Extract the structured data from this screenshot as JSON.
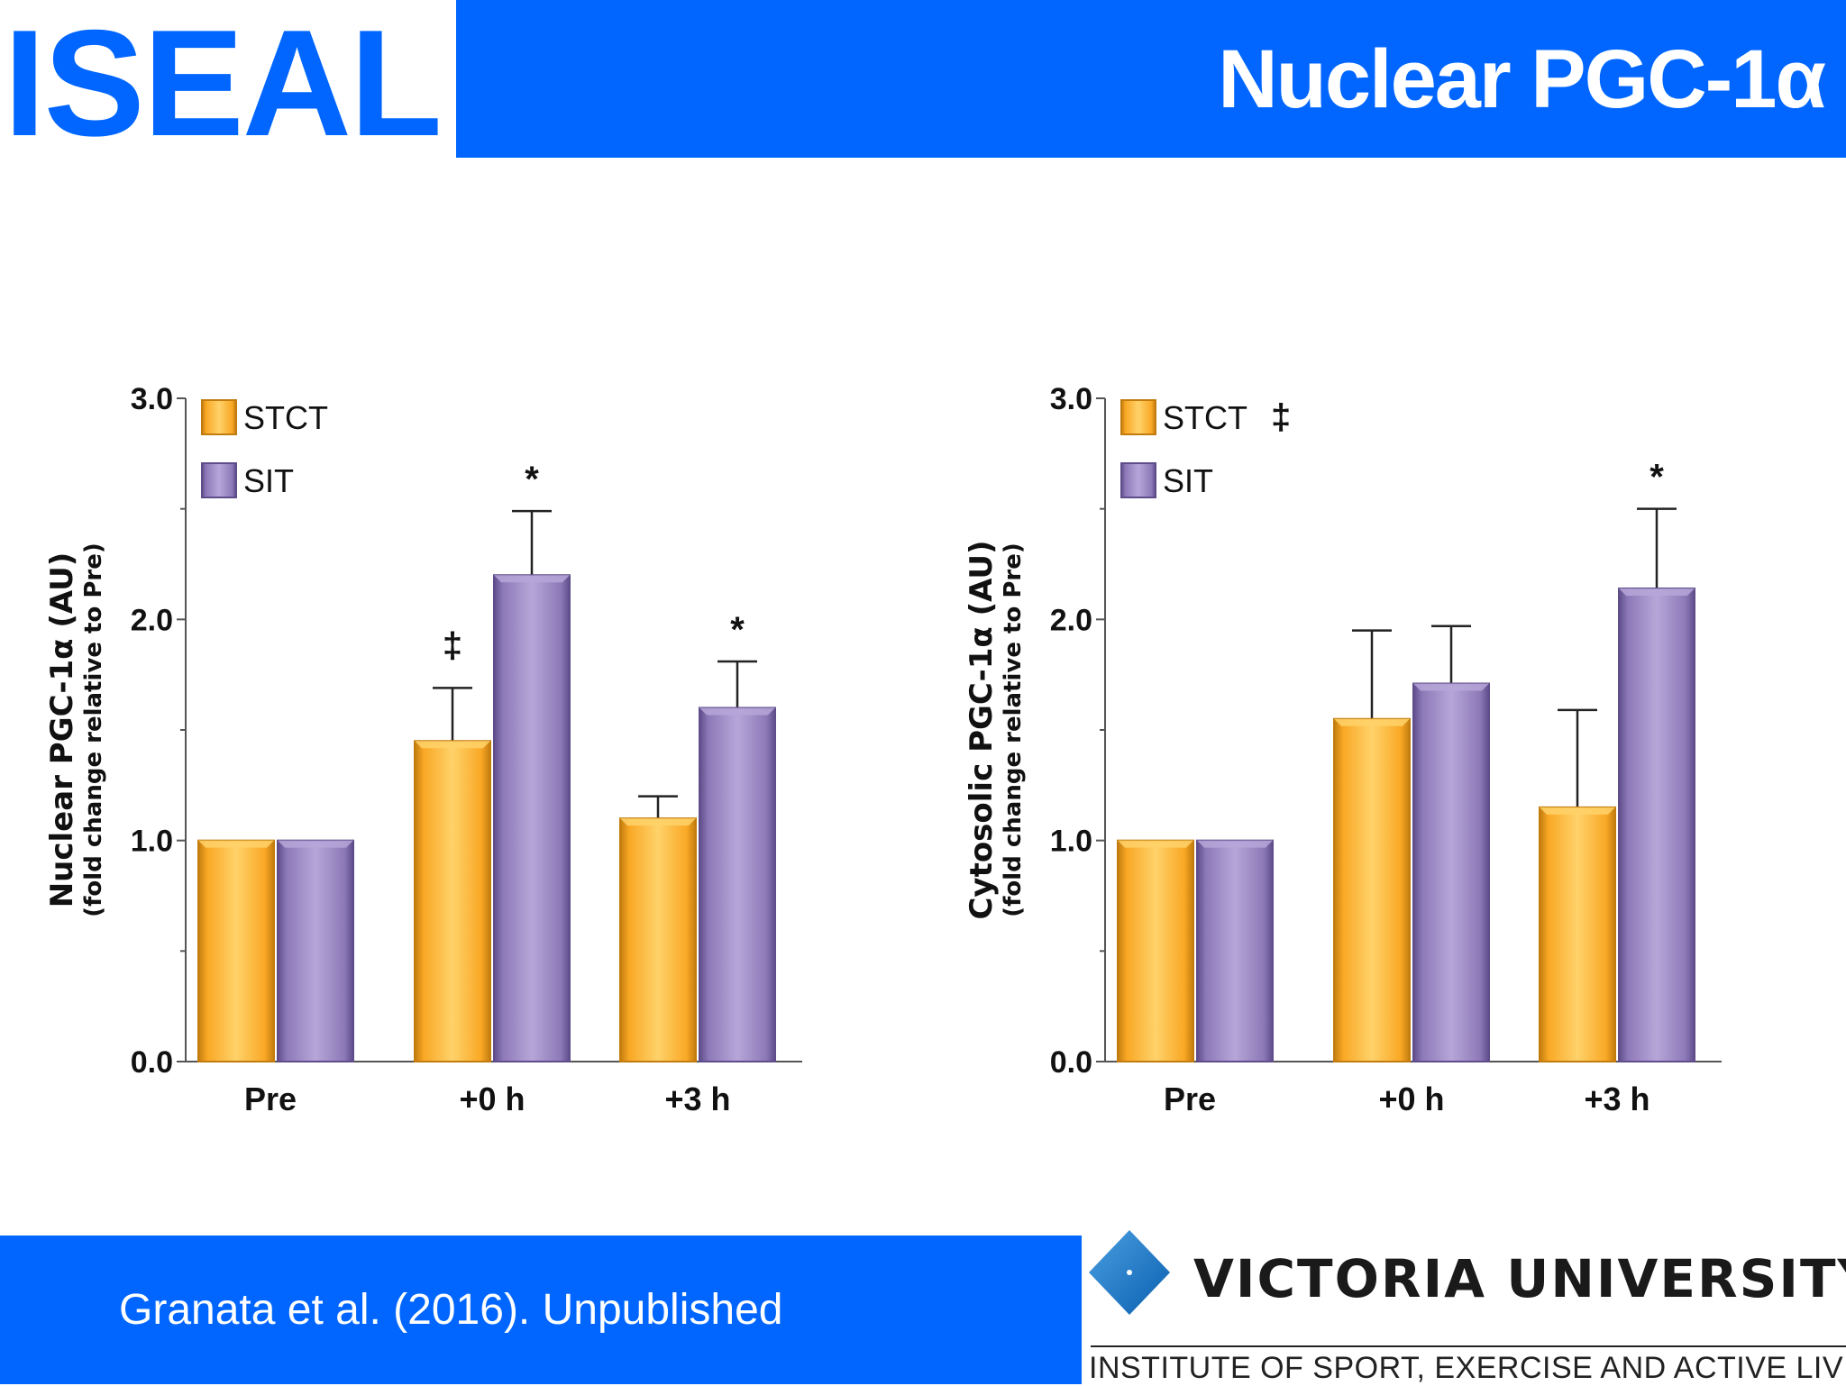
{
  "header": {
    "logo": "ISEAL",
    "title": "Nuclear PGC-1α"
  },
  "footer": {
    "citation": "Granata et al. (2016). Unpublished",
    "university": "VICTORIA UNIVERSITY",
    "institute": "INSTITUTE OF SPORT, EXERCISE AND ACTIVE LIVING"
  },
  "colors": {
    "brand_blue": "#0066ff",
    "stct": "#f9a825",
    "sit": "#8e79b8"
  },
  "chart_data": [
    {
      "type": "bar",
      "title": "",
      "ylabel": "Nuclear PGC-1α (AU)",
      "ylabel_sub": "(fold change relative to Pre)",
      "xlabel": "",
      "ylim": [
        0,
        3.0
      ],
      "yticks": [
        "0.0",
        "1.0",
        "2.0",
        "3.0"
      ],
      "categories": [
        "Pre",
        "+0 h",
        "+3 h"
      ],
      "legend": "top-left",
      "series": [
        {
          "name": "STCT",
          "values": [
            1.0,
            1.45,
            1.1
          ],
          "errors": [
            0,
            0.24,
            0.1
          ],
          "marks": [
            "",
            "‡",
            ""
          ]
        },
        {
          "name": "SIT",
          "values": [
            1.0,
            2.2,
            1.6
          ],
          "errors": [
            0,
            0.29,
            0.21
          ],
          "marks": [
            "",
            "*",
            "*"
          ]
        }
      ],
      "legend_marks": [
        "",
        ""
      ]
    },
    {
      "type": "bar",
      "title": "",
      "ylabel": "Cytosolic PGC-1α (AU)",
      "ylabel_sub": "(fold change relative to Pre)",
      "xlabel": "",
      "ylim": [
        0,
        3.0
      ],
      "yticks": [
        "0.0",
        "1.0",
        "2.0",
        "3.0"
      ],
      "categories": [
        "Pre",
        "+0 h",
        "+3 h"
      ],
      "legend": "top-left",
      "series": [
        {
          "name": "STCT",
          "values": [
            1.0,
            1.55,
            1.15
          ],
          "errors": [
            0,
            0.4,
            0.44
          ],
          "marks": [
            "",
            "",
            ""
          ]
        },
        {
          "name": "SIT",
          "values": [
            1.0,
            1.71,
            2.14
          ],
          "errors": [
            0,
            0.26,
            0.36
          ],
          "marks": [
            "",
            "",
            "*"
          ]
        }
      ],
      "legend_marks": [
        "‡",
        ""
      ]
    }
  ]
}
